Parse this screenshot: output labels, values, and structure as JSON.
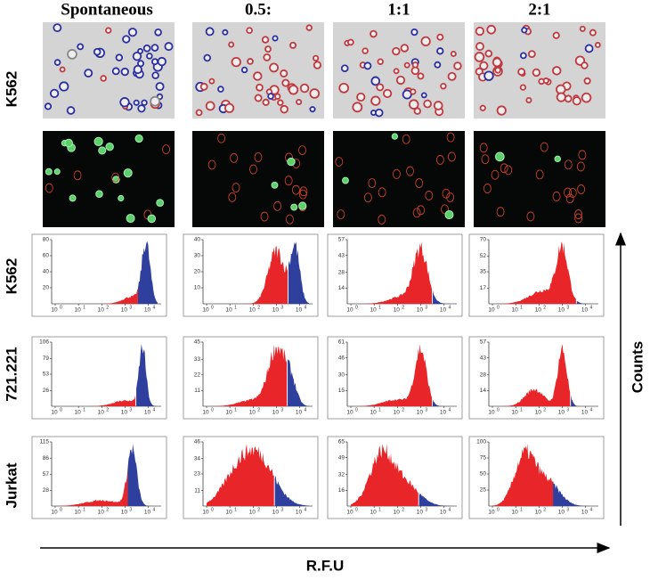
{
  "columns": [
    "Spontaneous",
    "0.5:",
    "1:1",
    "2:1"
  ],
  "row_labels": {
    "microscopy": "K562",
    "histograms": [
      "K562",
      "721.221",
      "Jurkat"
    ]
  },
  "axes": {
    "y_label": "Counts",
    "x_label": "R.F.U",
    "x_tick_base": "10",
    "x_tick_exponents": [
      "0",
      "1",
      "2",
      "3",
      "4"
    ]
  },
  "histograms": [
    {
      "yticks": [
        [
          20,
          40,
          60,
          80
        ],
        [
          10,
          20,
          30,
          40
        ],
        [
          14,
          28,
          43,
          57
        ],
        [
          17,
          35,
          52,
          70
        ]
      ]
    },
    {
      "yticks": [
        [
          26,
          53,
          79,
          106
        ],
        [
          11,
          22,
          33,
          45
        ],
        [
          15,
          30,
          46,
          61
        ],
        [
          14,
          28,
          43,
          57
        ]
      ]
    },
    {
      "yticks": [
        [
          28,
          57,
          86,
          115
        ],
        [
          11,
          23,
          34,
          46
        ],
        [
          16,
          32,
          49,
          65
        ],
        [
          25,
          50,
          75,
          100
        ]
      ]
    }
  ]
}
